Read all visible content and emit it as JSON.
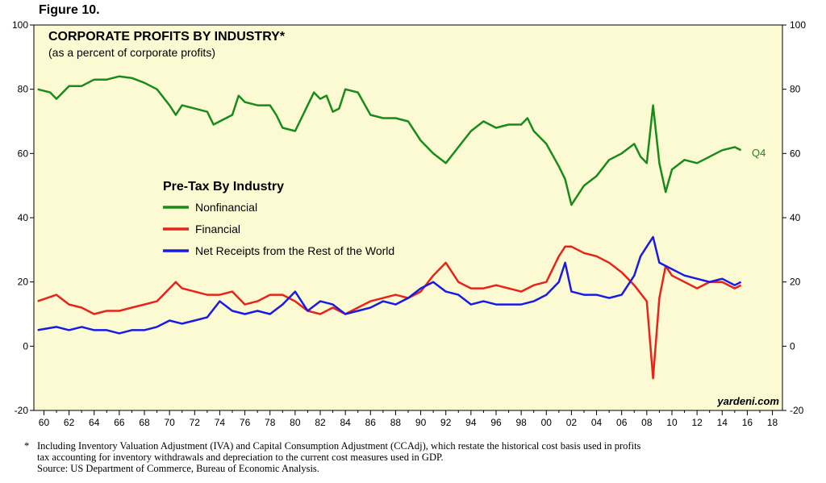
{
  "figure_label": "Figure 10.",
  "chart_data": {
    "type": "line",
    "title": "CORPORATE PROFITS BY INDUSTRY*",
    "subtitle": "(as a percent of corporate profits)",
    "legend_title": "Pre-Tax By Industry",
    "legend_position": "center-left",
    "watermark": "yardeni.com",
    "end_annotation": "Q4",
    "plot_background": "#fbfad3",
    "grid": false,
    "xlim": [
      1959.2,
      2018.8
    ],
    "ylim": [
      -20,
      100
    ],
    "y_ticks": [
      -20,
      0,
      20,
      40,
      60,
      80,
      100
    ],
    "y_tick_labels": [
      "-20",
      "0",
      "20",
      "40",
      "60",
      "80",
      "100"
    ],
    "x_ticks": [
      1960,
      1962,
      1964,
      1966,
      1968,
      1970,
      1972,
      1974,
      1976,
      1978,
      1980,
      1982,
      1984,
      1986,
      1988,
      1990,
      1992,
      1994,
      1996,
      1998,
      2000,
      2002,
      2004,
      2006,
      2008,
      2010,
      2012,
      2014,
      2016,
      2018
    ],
    "x_tick_labels": [
      "60",
      "62",
      "64",
      "66",
      "68",
      "70",
      "72",
      "74",
      "76",
      "78",
      "80",
      "82",
      "84",
      "86",
      "88",
      "90",
      "92",
      "94",
      "96",
      "98",
      "00",
      "02",
      "04",
      "06",
      "08",
      "10",
      "12",
      "14",
      "16",
      "18"
    ],
    "series": [
      {
        "name": "Nonfinancial",
        "color": "#1a8a1a",
        "points": [
          [
            1959.5,
            80
          ],
          [
            1960.5,
            79
          ],
          [
            1961,
            77
          ],
          [
            1962,
            81
          ],
          [
            1963,
            81
          ],
          [
            1964,
            83
          ],
          [
            1965,
            83
          ],
          [
            1966,
            84
          ],
          [
            1967,
            83.5
          ],
          [
            1968,
            82
          ],
          [
            1969,
            80
          ],
          [
            1970,
            75
          ],
          [
            1970.5,
            72
          ],
          [
            1971,
            75
          ],
          [
            1972,
            74
          ],
          [
            1973,
            73
          ],
          [
            1973.5,
            69
          ],
          [
            1974,
            70
          ],
          [
            1975,
            72
          ],
          [
            1975.5,
            78
          ],
          [
            1976,
            76
          ],
          [
            1977,
            75
          ],
          [
            1978,
            75
          ],
          [
            1978.5,
            72
          ],
          [
            1979,
            68
          ],
          [
            1980,
            67
          ],
          [
            1981,
            75
          ],
          [
            1981.5,
            79
          ],
          [
            1982,
            77
          ],
          [
            1982.5,
            78
          ],
          [
            1983,
            73
          ],
          [
            1983.5,
            74
          ],
          [
            1984,
            80
          ],
          [
            1985,
            79
          ],
          [
            1986,
            72
          ],
          [
            1987,
            71
          ],
          [
            1988,
            71
          ],
          [
            1989,
            70
          ],
          [
            1990,
            64
          ],
          [
            1991,
            60
          ],
          [
            1992,
            57
          ],
          [
            1993,
            62
          ],
          [
            1994,
            67
          ],
          [
            1995,
            70
          ],
          [
            1996,
            68
          ],
          [
            1997,
            69
          ],
          [
            1998,
            69
          ],
          [
            1998.5,
            71
          ],
          [
            1999,
            67
          ],
          [
            2000,
            63
          ],
          [
            2001,
            56
          ],
          [
            2001.5,
            52
          ],
          [
            2002,
            44
          ],
          [
            2003,
            50
          ],
          [
            2004,
            53
          ],
          [
            2005,
            58
          ],
          [
            2006,
            60
          ],
          [
            2007,
            63
          ],
          [
            2007.5,
            59
          ],
          [
            2008,
            57
          ],
          [
            2008.5,
            75
          ],
          [
            2009,
            57
          ],
          [
            2009.5,
            48
          ],
          [
            2010,
            55
          ],
          [
            2011,
            58
          ],
          [
            2012,
            57
          ],
          [
            2013,
            59
          ],
          [
            2014,
            61
          ],
          [
            2015,
            62
          ],
          [
            2015.5,
            61
          ]
        ]
      },
      {
        "name": "Financial",
        "color": "#e8231a",
        "points": [
          [
            1959.5,
            14
          ],
          [
            1961,
            16
          ],
          [
            1962,
            13
          ],
          [
            1963,
            12
          ],
          [
            1964,
            10
          ],
          [
            1965,
            11
          ],
          [
            1966,
            11
          ],
          [
            1967,
            12
          ],
          [
            1968,
            13
          ],
          [
            1969,
            14
          ],
          [
            1970,
            18
          ],
          [
            1970.5,
            20
          ],
          [
            1971,
            18
          ],
          [
            1972,
            17
          ],
          [
            1973,
            16
          ],
          [
            1974,
            16
          ],
          [
            1975,
            17
          ],
          [
            1976,
            13
          ],
          [
            1977,
            14
          ],
          [
            1978,
            16
          ],
          [
            1979,
            16
          ],
          [
            1980,
            14
          ],
          [
            1981,
            11
          ],
          [
            1982,
            10
          ],
          [
            1983,
            12
          ],
          [
            1984,
            10
          ],
          [
            1985,
            12
          ],
          [
            1986,
            14
          ],
          [
            1987,
            15
          ],
          [
            1988,
            16
          ],
          [
            1989,
            15
          ],
          [
            1990,
            17
          ],
          [
            1991,
            22
          ],
          [
            1992,
            26
          ],
          [
            1993,
            20
          ],
          [
            1994,
            18
          ],
          [
            1995,
            18
          ],
          [
            1996,
            19
          ],
          [
            1997,
            18
          ],
          [
            1998,
            17
          ],
          [
            1999,
            19
          ],
          [
            2000,
            20
          ],
          [
            2001,
            28
          ],
          [
            2001.5,
            31
          ],
          [
            2002,
            31
          ],
          [
            2003,
            29
          ],
          [
            2004,
            28
          ],
          [
            2005,
            26
          ],
          [
            2006,
            23
          ],
          [
            2007,
            19
          ],
          [
            2008,
            14
          ],
          [
            2008.5,
            -10
          ],
          [
            2009,
            15
          ],
          [
            2009.5,
            25
          ],
          [
            2010,
            22
          ],
          [
            2011,
            20
          ],
          [
            2012,
            18
          ],
          [
            2013,
            20
          ],
          [
            2014,
            20
          ],
          [
            2015,
            18
          ],
          [
            2015.5,
            19
          ]
        ]
      },
      {
        "name": "Net Receipts from the Rest of the World",
        "color": "#1a1ae6",
        "points": [
          [
            1959.5,
            5
          ],
          [
            1961,
            6
          ],
          [
            1962,
            5
          ],
          [
            1963,
            6
          ],
          [
            1964,
            5
          ],
          [
            1965,
            5
          ],
          [
            1966,
            4
          ],
          [
            1967,
            5
          ],
          [
            1968,
            5
          ],
          [
            1969,
            6
          ],
          [
            1970,
            8
          ],
          [
            1971,
            7
          ],
          [
            1972,
            8
          ],
          [
            1973,
            9
          ],
          [
            1974,
            14
          ],
          [
            1975,
            11
          ],
          [
            1976,
            10
          ],
          [
            1977,
            11
          ],
          [
            1978,
            10
          ],
          [
            1979,
            13
          ],
          [
            1980,
            17
          ],
          [
            1981,
            11
          ],
          [
            1982,
            14
          ],
          [
            1983,
            13
          ],
          [
            1984,
            10
          ],
          [
            1985,
            11
          ],
          [
            1986,
            12
          ],
          [
            1987,
            14
          ],
          [
            1988,
            13
          ],
          [
            1989,
            15
          ],
          [
            1990,
            18
          ],
          [
            1991,
            20
          ],
          [
            1992,
            17
          ],
          [
            1993,
            16
          ],
          [
            1994,
            13
          ],
          [
            1995,
            14
          ],
          [
            1996,
            13
          ],
          [
            1997,
            13
          ],
          [
            1998,
            13
          ],
          [
            1999,
            14
          ],
          [
            2000,
            16
          ],
          [
            2001,
            20
          ],
          [
            2001.5,
            26
          ],
          [
            2002,
            17
          ],
          [
            2003,
            16
          ],
          [
            2004,
            16
          ],
          [
            2005,
            15
          ],
          [
            2006,
            16
          ],
          [
            2007,
            22
          ],
          [
            2007.5,
            28
          ],
          [
            2008,
            31
          ],
          [
            2008.5,
            34
          ],
          [
            2009,
            26
          ],
          [
            2010,
            24
          ],
          [
            2011,
            22
          ],
          [
            2012,
            21
          ],
          [
            2013,
            20
          ],
          [
            2014,
            21
          ],
          [
            2015,
            19
          ],
          [
            2015.5,
            20
          ]
        ]
      }
    ]
  },
  "footnote": {
    "marker": "*",
    "line1": "Including Inventory Valuation Adjustment (IVA) and Capital Consumption Adjustment (CCAdj), which restate the historical cost basis used in profits",
    "line2": "tax accounting for inventory withdrawals and depreciation to the current cost measures used in GDP.",
    "source": "Source: US Department of Commerce, Bureau of Economic Analysis."
  }
}
